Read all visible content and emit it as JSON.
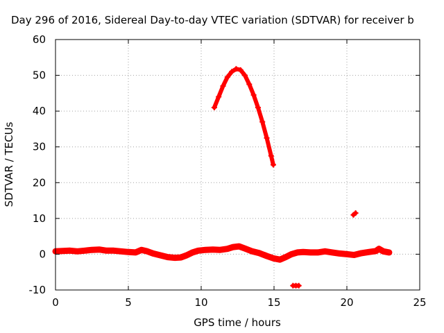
{
  "chart_data": {
    "type": "scatter",
    "title": "Day 296 of 2016, Sidereal Day-to-day VTEC variation (SDTVAR) for receiver b",
    "xlabel": "GPS time / hours",
    "ylabel": "SDTVAR / TECUs",
    "xlim": [
      0,
      25
    ],
    "ylim": [
      -10,
      60
    ],
    "xticks": [
      0,
      5,
      10,
      15,
      20,
      25
    ],
    "yticks": [
      -10,
      0,
      10,
      20,
      30,
      40,
      50,
      60
    ],
    "grid": true,
    "color": "#ff0000",
    "series": [
      {
        "values": [
          [
            0.0,
            0.8
          ],
          [
            0.5,
            0.9
          ],
          [
            1.0,
            1.0
          ],
          [
            1.5,
            0.8
          ],
          [
            2.0,
            1.0
          ],
          [
            2.5,
            1.2
          ],
          [
            3.0,
            1.3
          ],
          [
            3.5,
            1.0
          ],
          [
            4.0,
            1.0
          ],
          [
            4.5,
            0.8
          ],
          [
            5.0,
            0.6
          ],
          [
            5.5,
            0.5
          ],
          [
            5.9,
            1.2
          ],
          [
            6.3,
            0.8
          ],
          [
            6.7,
            0.2
          ],
          [
            7.2,
            -0.3
          ],
          [
            7.7,
            -0.8
          ],
          [
            8.2,
            -1.0
          ],
          [
            8.6,
            -0.9
          ],
          [
            9.0,
            -0.3
          ],
          [
            9.4,
            0.5
          ],
          [
            9.8,
            1.0
          ],
          [
            10.3,
            1.2
          ],
          [
            10.8,
            1.3
          ],
          [
            11.3,
            1.2
          ],
          [
            11.8,
            1.5
          ],
          [
            12.2,
            2.0
          ],
          [
            12.6,
            2.2
          ],
          [
            13.0,
            1.6
          ],
          [
            13.5,
            0.8
          ],
          [
            14.0,
            0.3
          ],
          [
            14.5,
            -0.5
          ],
          [
            15.0,
            -1.2
          ],
          [
            15.4,
            -1.5
          ],
          [
            15.8,
            -0.8
          ],
          [
            16.2,
            0.0
          ],
          [
            16.6,
            0.5
          ],
          [
            17.0,
            0.6
          ],
          [
            17.5,
            0.5
          ],
          [
            18.0,
            0.5
          ],
          [
            18.5,
            0.8
          ],
          [
            19.0,
            0.5
          ],
          [
            19.5,
            0.2
          ],
          [
            20.0,
            0.0
          ],
          [
            20.5,
            -0.2
          ],
          [
            21.0,
            0.3
          ],
          [
            21.5,
            0.6
          ],
          [
            22.0,
            0.9
          ],
          [
            22.2,
            1.5
          ],
          [
            22.5,
            0.8
          ],
          [
            22.9,
            0.5
          ]
        ]
      },
      {
        "values": [
          [
            10.9,
            41
          ],
          [
            11.2,
            44
          ],
          [
            11.5,
            47
          ],
          [
            11.8,
            49.5
          ],
          [
            12.1,
            51
          ],
          [
            12.4,
            51.8
          ],
          [
            12.7,
            51.5
          ],
          [
            13.0,
            50
          ],
          [
            13.3,
            47.5
          ],
          [
            13.6,
            44.5
          ],
          [
            13.9,
            41
          ],
          [
            14.2,
            37
          ],
          [
            14.5,
            32.5
          ],
          [
            14.8,
            27.5
          ],
          [
            14.95,
            25
          ]
        ]
      },
      {
        "values": [
          [
            16.3,
            -8.8
          ],
          [
            16.5,
            -8.8
          ],
          [
            16.7,
            -8.8
          ]
        ]
      },
      {
        "values": [
          [
            20.45,
            11.0
          ],
          [
            20.6,
            11.5
          ]
        ]
      }
    ]
  }
}
